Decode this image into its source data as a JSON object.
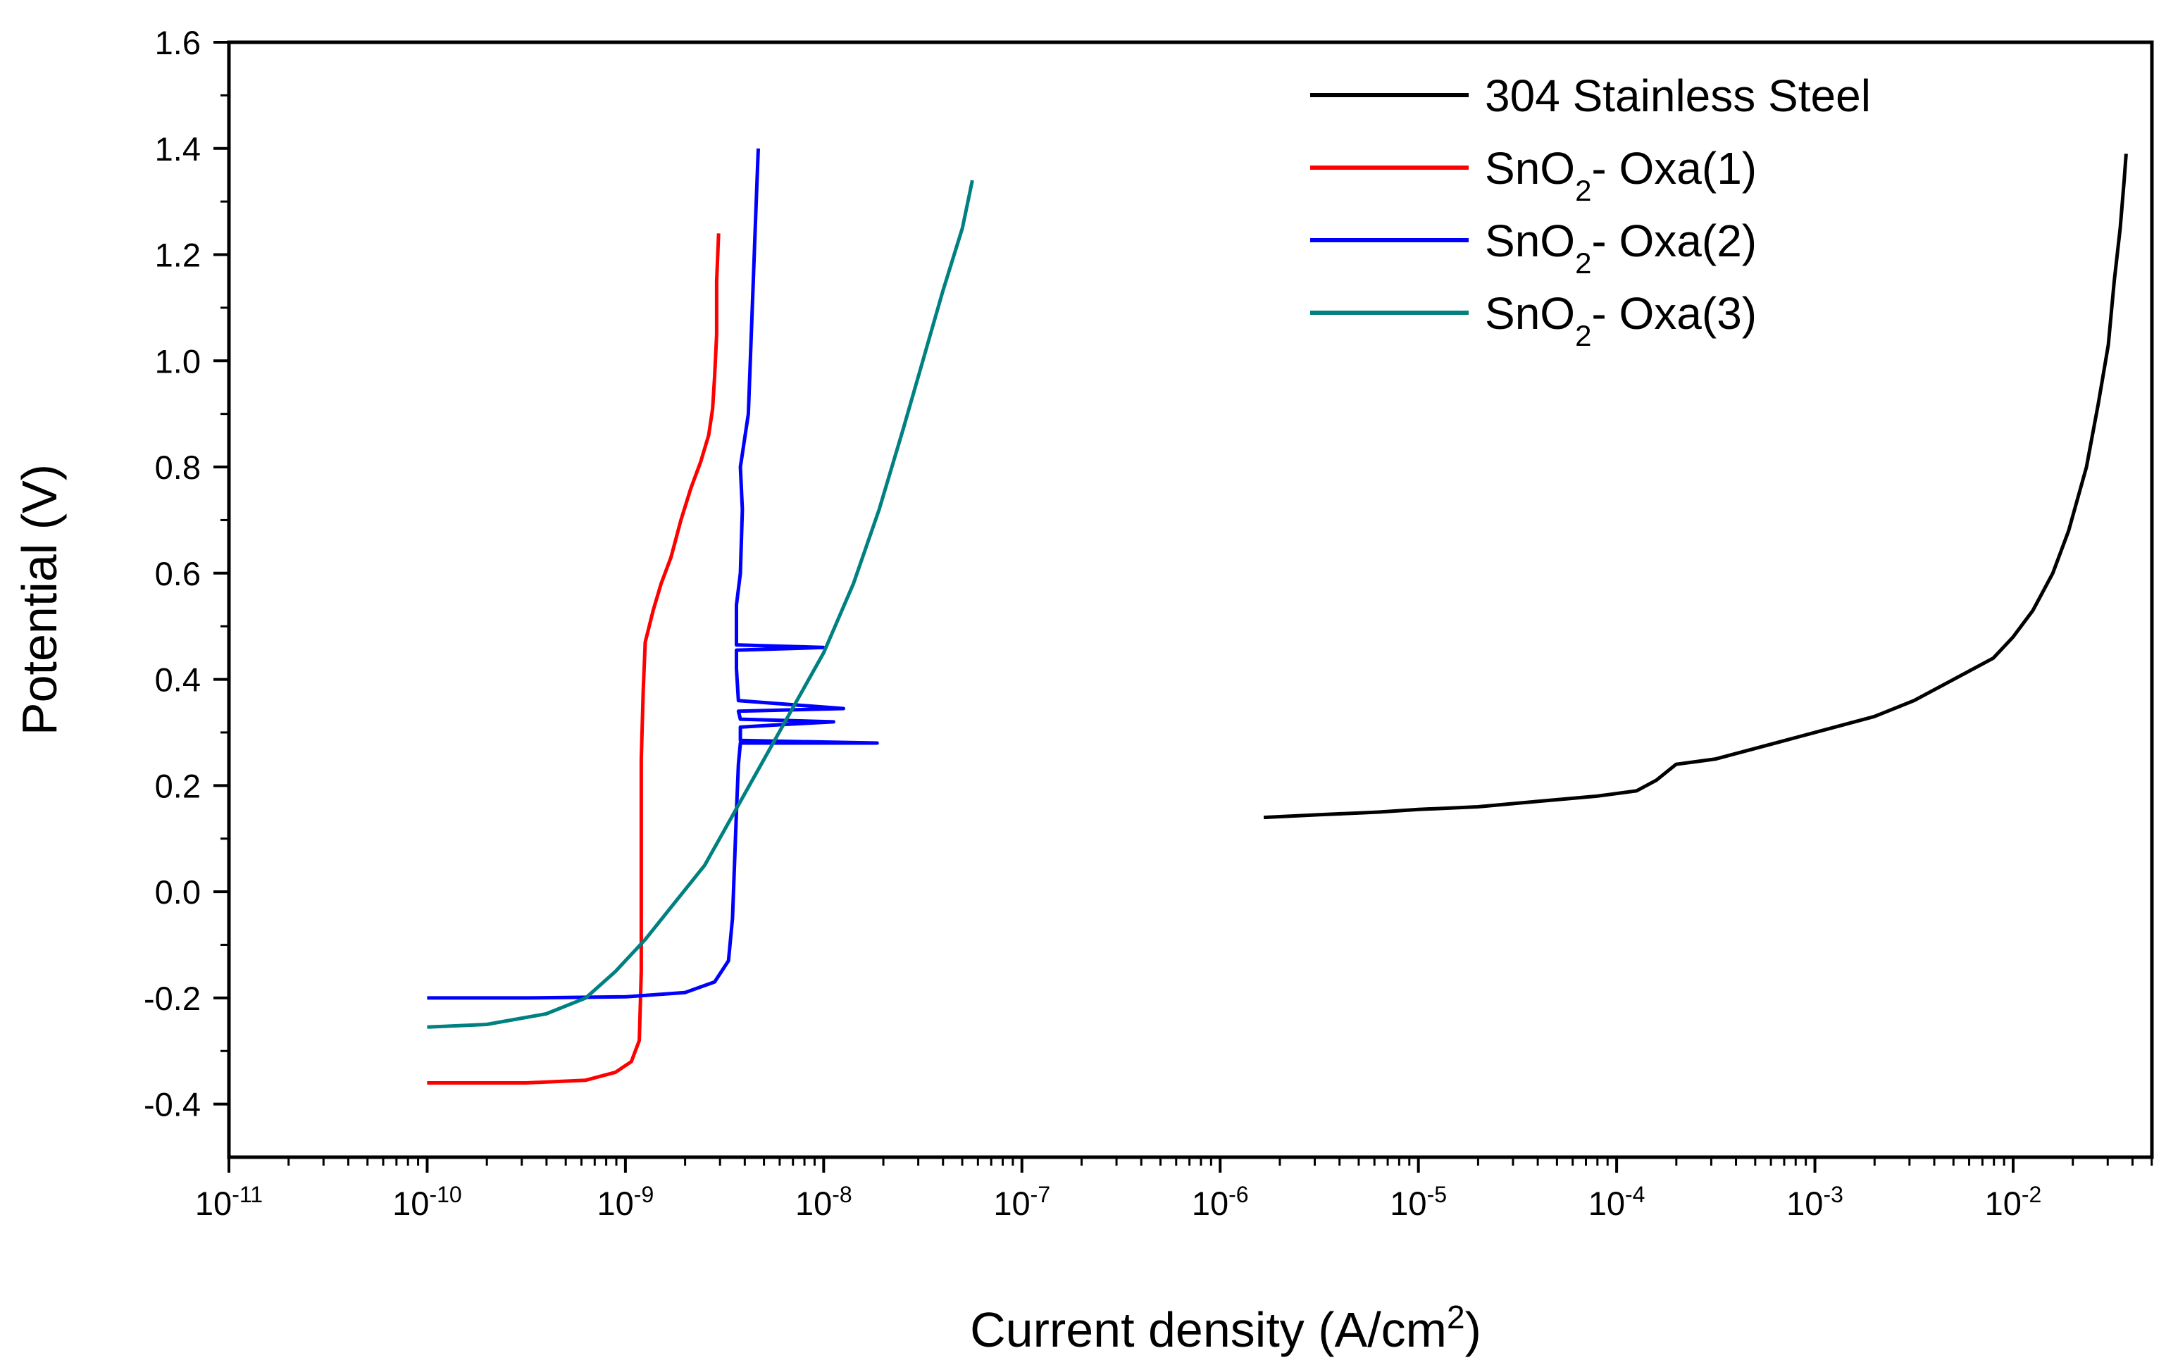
{
  "chart_data": {
    "type": "line",
    "xscale": "log",
    "xlabel": "Current density (A/cm",
    "xlabel_sup": "2",
    "xlabel_end": ")",
    "ylabel": "Potential (V)",
    "xlim_log10": [
      -11,
      -1.3
    ],
    "ylim": [
      -0.5,
      1.6
    ],
    "x_ticks_log10": [
      -11,
      -10,
      -9,
      -8,
      -7,
      -6,
      -5,
      -4,
      -3,
      -2
    ],
    "x_tick_base": "10",
    "y_ticks": [
      -0.4,
      -0.2,
      0.0,
      0.2,
      0.4,
      0.6,
      0.8,
      1.0,
      1.2,
      1.4,
      1.6
    ],
    "y_tick_labels": [
      "-0.4",
      "-0.2",
      "0.0",
      "0.2",
      "0.4",
      "0.6",
      "0.8",
      "1.0",
      "1.2",
      "1.4",
      "1.6"
    ],
    "legend_position": "top-right",
    "series": [
      {
        "name": "304 Stainless Steel",
        "label_main": "304 Stainless Steel",
        "label_sub": "",
        "label_tail": "",
        "color": "#000000",
        "points_log10x_y": [
          [
            -5.78,
            0.14
          ],
          [
            -5.5,
            0.145
          ],
          [
            -5.2,
            0.15
          ],
          [
            -5.0,
            0.155
          ],
          [
            -4.7,
            0.16
          ],
          [
            -4.4,
            0.17
          ],
          [
            -4.1,
            0.18
          ],
          [
            -3.9,
            0.19
          ],
          [
            -3.8,
            0.21
          ],
          [
            -3.7,
            0.24
          ],
          [
            -3.5,
            0.25
          ],
          [
            -3.3,
            0.27
          ],
          [
            -3.1,
            0.29
          ],
          [
            -2.9,
            0.31
          ],
          [
            -2.7,
            0.33
          ],
          [
            -2.5,
            0.36
          ],
          [
            -2.3,
            0.4
          ],
          [
            -2.1,
            0.44
          ],
          [
            -2.0,
            0.48
          ],
          [
            -1.9,
            0.53
          ],
          [
            -1.8,
            0.6
          ],
          [
            -1.72,
            0.68
          ],
          [
            -1.63,
            0.8
          ],
          [
            -1.57,
            0.92
          ],
          [
            -1.52,
            1.03
          ],
          [
            -1.49,
            1.15
          ],
          [
            -1.46,
            1.25
          ],
          [
            -1.44,
            1.34
          ],
          [
            -1.43,
            1.39
          ]
        ]
      },
      {
        "name": "SnO2- Oxa(1)",
        "label_main": "SnO",
        "label_sub": "2",
        "label_tail": "- Oxa(1)",
        "color": "#ff0000",
        "points_log10x_y": [
          [
            -10.0,
            -0.36
          ],
          [
            -9.5,
            -0.36
          ],
          [
            -9.2,
            -0.355
          ],
          [
            -9.05,
            -0.34
          ],
          [
            -8.97,
            -0.32
          ],
          [
            -8.93,
            -0.28
          ],
          [
            -8.92,
            -0.15
          ],
          [
            -8.92,
            0.05
          ],
          [
            -8.92,
            0.25
          ],
          [
            -8.91,
            0.38
          ],
          [
            -8.9,
            0.47
          ],
          [
            -8.86,
            0.53
          ],
          [
            -8.82,
            0.58
          ],
          [
            -8.77,
            0.63
          ],
          [
            -8.72,
            0.7
          ],
          [
            -8.67,
            0.76
          ],
          [
            -8.62,
            0.81
          ],
          [
            -8.58,
            0.86
          ],
          [
            -8.56,
            0.91
          ],
          [
            -8.55,
            0.97
          ],
          [
            -8.54,
            1.05
          ],
          [
            -8.54,
            1.15
          ],
          [
            -8.53,
            1.24
          ]
        ]
      },
      {
        "name": "SnO2- Oxa(2)",
        "label_main": "SnO",
        "label_sub": "2",
        "label_tail": "- Oxa(2)",
        "color": "#0000ff",
        "points_log10x_y": [
          [
            -10.0,
            -0.2
          ],
          [
            -9.5,
            -0.2
          ],
          [
            -9.0,
            -0.198
          ],
          [
            -8.7,
            -0.19
          ],
          [
            -8.55,
            -0.17
          ],
          [
            -8.48,
            -0.13
          ],
          [
            -8.46,
            -0.05
          ],
          [
            -8.45,
            0.05
          ],
          [
            -8.44,
            0.15
          ],
          [
            -8.43,
            0.24
          ],
          [
            -8.42,
            0.28
          ],
          [
            -7.73,
            0.28
          ],
          [
            -8.42,
            0.285
          ],
          [
            -8.42,
            0.31
          ],
          [
            -8.2,
            0.315
          ],
          [
            -7.95,
            0.32
          ],
          [
            -8.42,
            0.325
          ],
          [
            -8.43,
            0.34
          ],
          [
            -7.9,
            0.345
          ],
          [
            -8.43,
            0.36
          ],
          [
            -8.44,
            0.42
          ],
          [
            -8.44,
            0.455
          ],
          [
            -8.0,
            0.46
          ],
          [
            -8.44,
            0.465
          ],
          [
            -8.44,
            0.54
          ],
          [
            -8.42,
            0.6
          ],
          [
            -8.41,
            0.72
          ],
          [
            -8.42,
            0.8
          ],
          [
            -8.38,
            0.9
          ],
          [
            -8.37,
            1.0
          ],
          [
            -8.36,
            1.1
          ],
          [
            -8.35,
            1.2
          ],
          [
            -8.34,
            1.3
          ],
          [
            -8.33,
            1.4
          ]
        ]
      },
      {
        "name": "SnO2- Oxa(3)",
        "label_main": "SnO",
        "label_sub": "2",
        "label_tail": "- Oxa(3)",
        "color": "#008080",
        "points_log10x_y": [
          [
            -10.0,
            -0.255
          ],
          [
            -9.7,
            -0.25
          ],
          [
            -9.4,
            -0.23
          ],
          [
            -9.2,
            -0.2
          ],
          [
            -9.05,
            -0.15
          ],
          [
            -8.9,
            -0.09
          ],
          [
            -8.75,
            -0.02
          ],
          [
            -8.6,
            0.05
          ],
          [
            -8.45,
            0.15
          ],
          [
            -8.3,
            0.25
          ],
          [
            -8.15,
            0.35
          ],
          [
            -8.0,
            0.45
          ],
          [
            -7.85,
            0.58
          ],
          [
            -7.72,
            0.72
          ],
          [
            -7.6,
            0.87
          ],
          [
            -7.5,
            1.0
          ],
          [
            -7.4,
            1.13
          ],
          [
            -7.3,
            1.25
          ],
          [
            -7.25,
            1.34
          ]
        ]
      }
    ]
  }
}
